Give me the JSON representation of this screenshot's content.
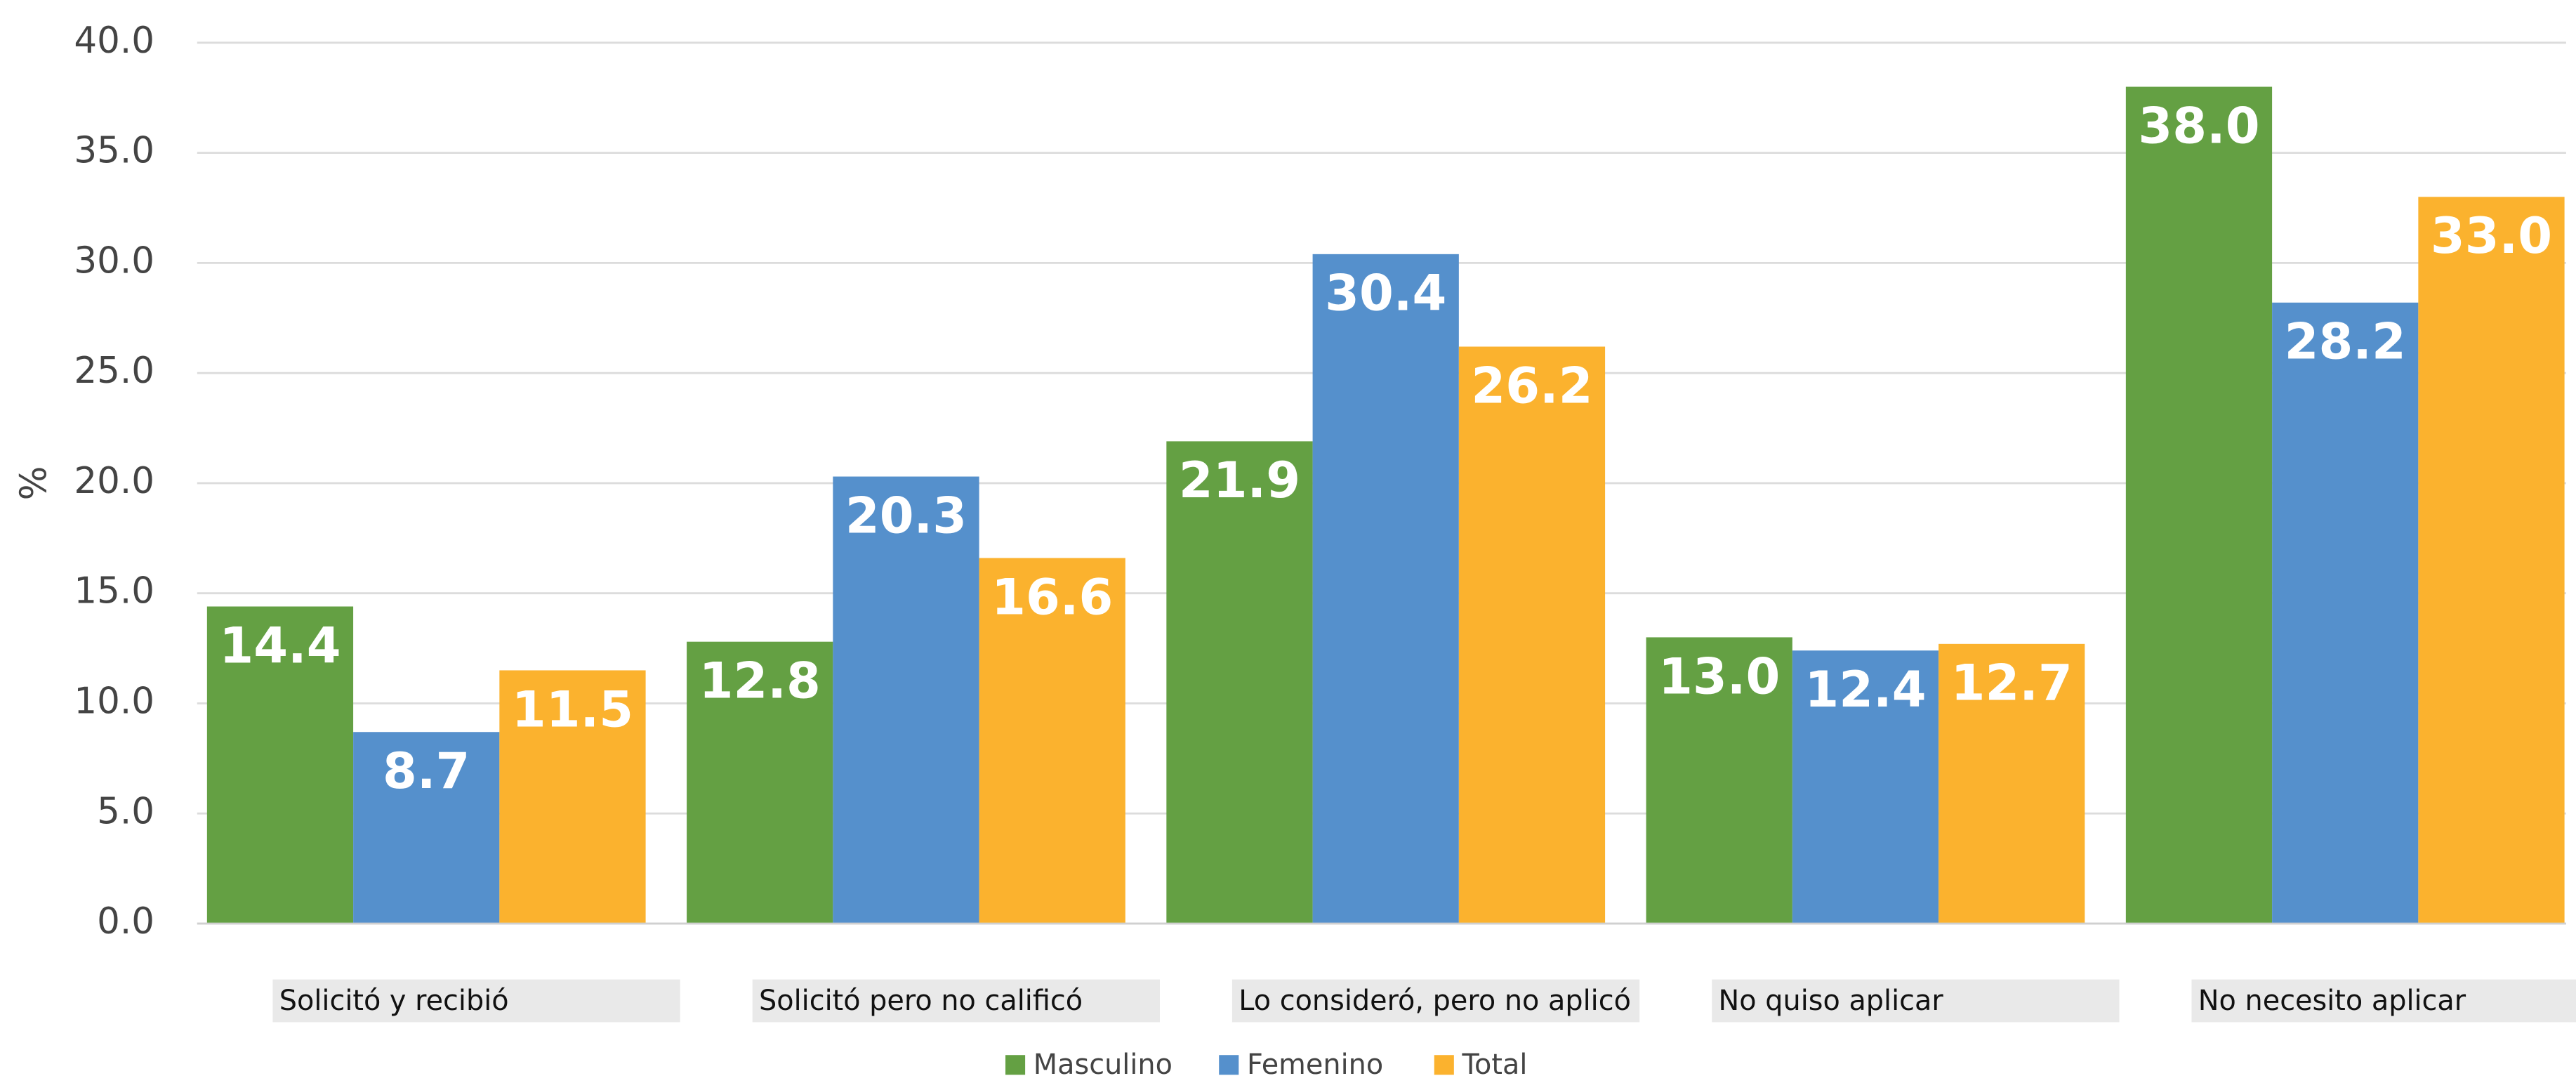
{
  "chart_data": {
    "type": "bar",
    "y_label": "%",
    "categories": [
      "Solicitó y recibió",
      "Solicitó pero no calificó",
      "Lo consideró, pero no aplicó",
      "No quiso aplicar",
      "No necesito aplicar"
    ],
    "series": [
      {
        "name": "Masculino",
        "color": "#64a043",
        "values": [
          14.4,
          12.8,
          21.9,
          13.0,
          38.0
        ],
        "value_labels": [
          "14.4",
          "12.8",
          "21.9",
          "13.0",
          "38.0"
        ]
      },
      {
        "name": "Femenino",
        "color": "#5590cc",
        "values": [
          8.7,
          20.3,
          30.4,
          12.4,
          28.2
        ],
        "value_labels": [
          "8.7",
          "20.3",
          "30.4",
          "12.4",
          "28.2"
        ]
      },
      {
        "name": "Total",
        "color": "#fbb22e",
        "values": [
          11.5,
          16.6,
          26.2,
          12.7,
          33.0
        ],
        "value_labels": [
          "11.5",
          "16.6",
          "26.2",
          "12.7",
          "33.0"
        ]
      }
    ],
    "ylim": [
      0,
      40
    ],
    "yticks": [
      {
        "value": 0,
        "label": "0.0"
      },
      {
        "value": 5,
        "label": "5.0"
      },
      {
        "value": 10,
        "label": "10.0"
      },
      {
        "value": 15,
        "label": "15.0"
      },
      {
        "value": 20,
        "label": "20.0"
      },
      {
        "value": 25,
        "label": "25.0"
      },
      {
        "value": 30,
        "label": "30.0"
      },
      {
        "value": 35,
        "label": "35.0"
      },
      {
        "value": 40,
        "label": "40.0"
      }
    ],
    "grid": true,
    "legend": "bottom"
  }
}
